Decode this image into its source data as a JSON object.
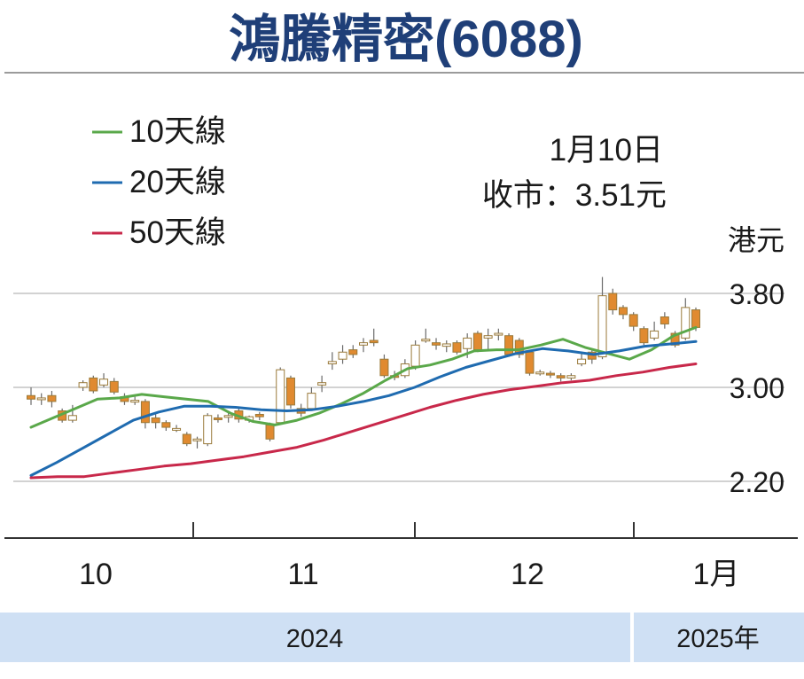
{
  "chart_data": {
    "type": "candlestick",
    "title": "鴻騰精密(6088)",
    "annotation": {
      "date": "1月10日",
      "close": "收市：3.51元"
    },
    "y_unit": "港元",
    "y_ticks": [
      "3.80",
      "3.00",
      "2.20"
    ],
    "ylim": [
      1.7,
      4.4
    ],
    "grid": true,
    "legend_position": "top-left",
    "x_month_labels": [
      "10",
      "11",
      "12",
      "1月"
    ],
    "year_labels": [
      "2024",
      "2025年"
    ],
    "colors": {
      "title": "#1f3f78",
      "ma10": "#5aa84a",
      "ma20": "#1f6bb0",
      "ma50": "#c8284a",
      "up_fill": "#ffffff",
      "down_fill": "#e08a30",
      "candle_edge": "#9a7a3a",
      "year_band": "#cfe0f4"
    },
    "series": [
      {
        "name": "10天線",
        "key": "ma10",
        "values": [
          2.66,
          2.74,
          2.82,
          2.9,
          2.91,
          2.94,
          2.92,
          2.9,
          2.88,
          2.78,
          2.71,
          2.68,
          2.72,
          2.78,
          2.86,
          2.95,
          3.06,
          3.16,
          3.19,
          3.24,
          3.31,
          3.32,
          3.32,
          3.36,
          3.41,
          3.34,
          3.29,
          3.24,
          3.32,
          3.44,
          3.51
        ]
      },
      {
        "name": "20天線",
        "key": "ma20",
        "values": [
          2.25,
          2.36,
          2.48,
          2.6,
          2.72,
          2.79,
          2.84,
          2.84,
          2.83,
          2.81,
          2.8,
          2.81,
          2.84,
          2.88,
          2.93,
          3.0,
          3.09,
          3.17,
          3.23,
          3.29,
          3.33,
          3.31,
          3.28,
          3.31,
          3.35,
          3.37,
          3.39
        ]
      },
      {
        "name": "50天線",
        "key": "ma50",
        "values": [
          2.23,
          2.24,
          2.24,
          2.27,
          2.3,
          2.33,
          2.35,
          2.38,
          2.41,
          2.45,
          2.49,
          2.55,
          2.62,
          2.69,
          2.76,
          2.83,
          2.89,
          2.94,
          2.98,
          3.01,
          3.04,
          3.06,
          3.1,
          3.13,
          3.17,
          3.2
        ]
      }
    ],
    "candles": [
      [
        2.93,
        2.9,
        3.0,
        2.85
      ],
      [
        2.9,
        2.91,
        2.95,
        2.85
      ],
      [
        2.93,
        2.88,
        2.97,
        2.83
      ],
      [
        2.8,
        2.72,
        2.82,
        2.7
      ],
      [
        2.72,
        2.76,
        2.85,
        2.7
      ],
      [
        3.0,
        3.04,
        3.06,
        2.97
      ],
      [
        3.08,
        2.97,
        3.1,
        2.95
      ],
      [
        3.02,
        3.07,
        3.12,
        3.0
      ],
      [
        3.05,
        2.96,
        3.08,
        2.94
      ],
      [
        2.92,
        2.88,
        2.95,
        2.85
      ],
      [
        2.88,
        2.89,
        2.92,
        2.85
      ],
      [
        2.88,
        2.7,
        2.9,
        2.65
      ],
      [
        2.74,
        2.7,
        2.77,
        2.65
      ],
      [
        2.7,
        2.66,
        2.72,
        2.63
      ],
      [
        2.65,
        2.65,
        2.68,
        2.62
      ],
      [
        2.6,
        2.52,
        2.62,
        2.5
      ],
      [
        2.55,
        2.56,
        2.58,
        2.48
      ],
      [
        2.52,
        2.76,
        2.78,
        2.5
      ],
      [
        2.74,
        2.73,
        2.77,
        2.7
      ],
      [
        2.76,
        2.76,
        2.8,
        2.7
      ],
      [
        2.8,
        2.73,
        2.82,
        2.7
      ],
      [
        2.72,
        2.75,
        2.76,
        2.7
      ],
      [
        2.77,
        2.75,
        2.79,
        2.72
      ],
      [
        2.68,
        2.56,
        2.7,
        2.54
      ],
      [
        2.7,
        3.15,
        3.17,
        2.68
      ],
      [
        3.08,
        2.85,
        3.1,
        2.82
      ],
      [
        2.82,
        2.78,
        2.86,
        2.75
      ],
      [
        2.82,
        2.95,
        3.0,
        2.8
      ],
      [
        3.02,
        3.04,
        3.1,
        2.96
      ],
      [
        3.2,
        3.22,
        3.3,
        3.15
      ],
      [
        3.24,
        3.3,
        3.36,
        3.2
      ],
      [
        3.32,
        3.28,
        3.36,
        3.25
      ],
      [
        3.36,
        3.38,
        3.42,
        3.3
      ],
      [
        3.4,
        3.38,
        3.5,
        3.35
      ],
      [
        3.24,
        3.1,
        3.28,
        3.08
      ],
      [
        3.1,
        3.09,
        3.14,
        3.06
      ],
      [
        3.1,
        3.2,
        3.24,
        3.08
      ],
      [
        3.18,
        3.36,
        3.4,
        3.15
      ],
      [
        3.4,
        3.41,
        3.5,
        3.38
      ],
      [
        3.38,
        3.36,
        3.42,
        3.32
      ],
      [
        3.35,
        3.37,
        3.4,
        3.3
      ],
      [
        3.38,
        3.3,
        3.4,
        3.28
      ],
      [
        3.33,
        3.42,
        3.46,
        3.25
      ],
      [
        3.46,
        3.32,
        3.48,
        3.3
      ],
      [
        3.42,
        3.44,
        3.5,
        3.32
      ],
      [
        3.46,
        3.46,
        3.5,
        3.4
      ],
      [
        3.44,
        3.28,
        3.46,
        3.26
      ],
      [
        3.4,
        3.28,
        3.42,
        3.25
      ],
      [
        3.3,
        3.12,
        3.32,
        3.1
      ],
      [
        3.12,
        3.13,
        3.15,
        3.1
      ],
      [
        3.12,
        3.11,
        3.14,
        3.08
      ],
      [
        3.1,
        3.08,
        3.12,
        3.05
      ],
      [
        3.08,
        3.1,
        3.12,
        3.06
      ],
      [
        3.2,
        3.24,
        3.3,
        3.18
      ],
      [
        3.3,
        3.24,
        3.32,
        3.2
      ],
      [
        3.26,
        3.78,
        3.94,
        3.24
      ],
      [
        3.8,
        3.66,
        3.84,
        3.62
      ],
      [
        3.68,
        3.62,
        3.7,
        3.58
      ],
      [
        3.62,
        3.52,
        3.64,
        3.48
      ],
      [
        3.5,
        3.38,
        3.52,
        3.36
      ],
      [
        3.42,
        3.48,
        3.56,
        3.4
      ],
      [
        3.6,
        3.54,
        3.64,
        3.5
      ],
      [
        3.46,
        3.36,
        3.48,
        3.34
      ],
      [
        3.42,
        3.68,
        3.76,
        3.4
      ],
      [
        3.66,
        3.51,
        3.68,
        3.48
      ]
    ]
  }
}
